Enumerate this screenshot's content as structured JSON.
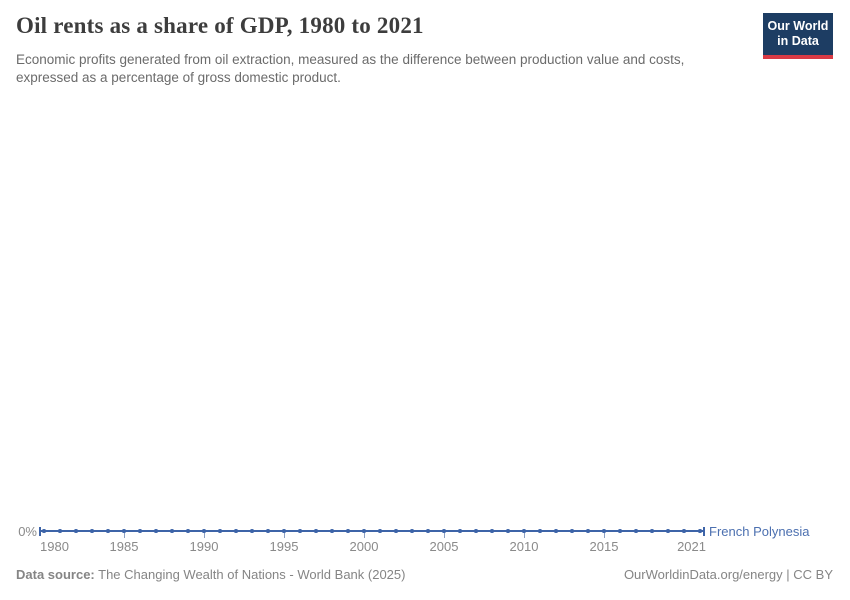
{
  "header": {
    "title": "Oil rents as a share of GDP, 1980 to 2021",
    "subtitle": "Economic profits generated from oil extraction, measured as the difference between production value and costs, expressed as a percentage of gross domestic product.",
    "logo": {
      "line1": "Our World",
      "line2": "in Data"
    }
  },
  "chart_data": {
    "type": "line",
    "title": "Oil rents as a share of GDP, 1980 to 2021",
    "xlabel": "",
    "ylabel": "",
    "x": [
      1980,
      1981,
      1982,
      1983,
      1984,
      1985,
      1986,
      1987,
      1988,
      1989,
      1990,
      1991,
      1992,
      1993,
      1994,
      1995,
      1996,
      1997,
      1998,
      1999,
      2000,
      2001,
      2002,
      2003,
      2004,
      2005,
      2006,
      2007,
      2008,
      2009,
      2010,
      2011,
      2012,
      2013,
      2014,
      2015,
      2016,
      2017,
      2018,
      2019,
      2020,
      2021
    ],
    "series": [
      {
        "name": "French Polynesia",
        "values": [
          0,
          0,
          0,
          0,
          0,
          0,
          0,
          0,
          0,
          0,
          0,
          0,
          0,
          0,
          0,
          0,
          0,
          0,
          0,
          0,
          0,
          0,
          0,
          0,
          0,
          0,
          0,
          0,
          0,
          0,
          0,
          0,
          0,
          0,
          0,
          0,
          0,
          0,
          0,
          0,
          0,
          0
        ]
      }
    ],
    "x_ticks": [
      1980,
      1985,
      1990,
      1995,
      2000,
      2005,
      2010,
      2015,
      2021
    ],
    "x_tick_labels": [
      "1980",
      "1985",
      "1990",
      "1995",
      "2000",
      "2005",
      "2010",
      "2015",
      "2021"
    ],
    "y_ticks": [
      "0%"
    ],
    "ylim": [
      0,
      0
    ],
    "grid": false,
    "legend_position": "right-of-line-end",
    "marker": "dot-per-year"
  },
  "footer": {
    "datasource_label": "Data source:",
    "datasource_text": " The Changing Wealth of Nations - World Bank (2025)",
    "credit": "OurWorldinData.org/energy | CC BY"
  },
  "colors": {
    "line": "#3d64a8",
    "entity_label": "#4c70b0",
    "tick": "#8ba0c4",
    "axis_text": "#8a8a8a",
    "title_text": "#3d3d3d",
    "subtitle_text": "#6b6b6b",
    "footer_text": "#858585",
    "logo_navy": "#1d3d63",
    "logo_red": "#d93a45",
    "background": "#ffffff"
  }
}
